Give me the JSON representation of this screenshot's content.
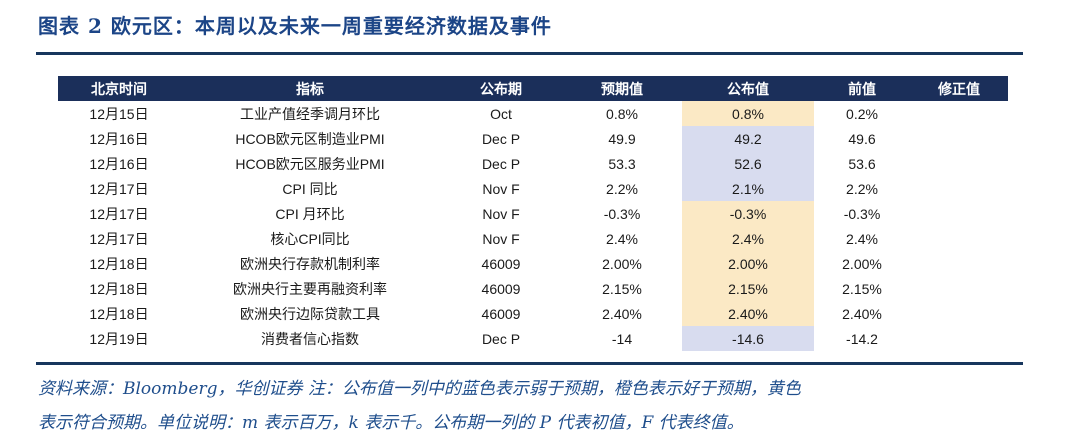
{
  "title": "图表 2  欧元区：本周以及未来一周重要经济数据及事件",
  "table": {
    "headers": [
      "北京时间",
      "指标",
      "公布期",
      "预期值",
      "公布值",
      "前值",
      "修正值"
    ],
    "rows": [
      {
        "date": "12月15日",
        "indicator": "工业产值经季调月环比",
        "period": "Oct",
        "expected": "0.8%",
        "actual": "0.8%",
        "previous": "0.2%",
        "revised": "",
        "actual_highlight": "yellow"
      },
      {
        "date": "12月16日",
        "indicator": "HCOB欧元区制造业PMI",
        "period": "Dec P",
        "expected": "49.9",
        "actual": "49.2",
        "previous": "49.6",
        "revised": "",
        "actual_highlight": "blue"
      },
      {
        "date": "12月16日",
        "indicator": "HCOB欧元区服务业PMI",
        "period": "Dec P",
        "expected": "53.3",
        "actual": "52.6",
        "previous": "53.6",
        "revised": "",
        "actual_highlight": "blue"
      },
      {
        "date": "12月17日",
        "indicator": "CPI 同比",
        "period": "Nov F",
        "expected": "2.2%",
        "actual": "2.1%",
        "previous": "2.2%",
        "revised": "",
        "actual_highlight": "blue"
      },
      {
        "date": "12月17日",
        "indicator": "CPI 月环比",
        "period": "Nov F",
        "expected": "-0.3%",
        "actual": "-0.3%",
        "previous": "-0.3%",
        "revised": "",
        "actual_highlight": "yellow"
      },
      {
        "date": "12月17日",
        "indicator": "核心CPI同比",
        "period": "Nov F",
        "expected": "2.4%",
        "actual": "2.4%",
        "previous": "2.4%",
        "revised": "",
        "actual_highlight": "yellow"
      },
      {
        "date": "12月18日",
        "indicator": "欧洲央行存款机制利率",
        "period": "46009",
        "expected": "2.00%",
        "actual": "2.00%",
        "previous": "2.00%",
        "revised": "",
        "actual_highlight": "yellow"
      },
      {
        "date": "12月18日",
        "indicator": "欧洲央行主要再融资利率",
        "period": "46009",
        "expected": "2.15%",
        "actual": "2.15%",
        "previous": "2.15%",
        "revised": "",
        "actual_highlight": "yellow"
      },
      {
        "date": "12月18日",
        "indicator": "欧洲央行边际贷款工具",
        "period": "46009",
        "expected": "2.40%",
        "actual": "2.40%",
        "previous": "2.40%",
        "revised": "",
        "actual_highlight": "yellow"
      },
      {
        "date": "12月19日",
        "indicator": "消费者信心指数",
        "period": "Dec P",
        "expected": "-14",
        "actual": "-14.6",
        "previous": "-14.2",
        "revised": "",
        "actual_highlight": "blue"
      }
    ]
  },
  "footnote": {
    "line1": "资料来源：Bloomberg，华创证券 注：公布值一列中的蓝色表示弱于预期，橙色表示好于预期，黄色",
    "line2": "表示符合预期。单位说明：m 表示百万，k 表示千。公布期一列的 P 代表初值，F 代表终值。"
  },
  "colors": {
    "header_bg": "#1b2f5a",
    "title_color": "#1c4587",
    "rule_color": "#17365d",
    "footnote_color": "#1f4e8c",
    "highlight_yellow": "#fbe9c5",
    "highlight_blue": "#d8dcef"
  }
}
